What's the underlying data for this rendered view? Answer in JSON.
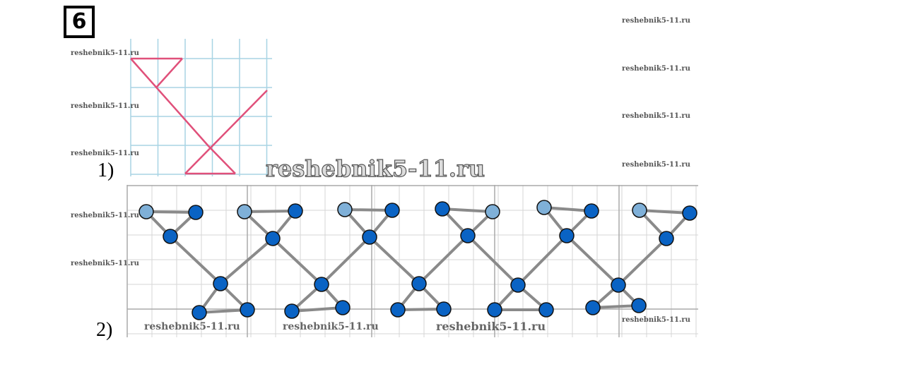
{
  "task_number": "6",
  "part_labels": [
    "1)",
    "2)"
  ],
  "watermark": "reshebnik5-11.ru",
  "watermarks_small": [
    "reshebnik5-11.ru",
    "reshebnik5-11.ru",
    "reshebnik5-11.ru",
    "reshebnik5-11.ru",
    "reshebnik5-11.ru",
    "reshebnik5-11.ru",
    "reshebnik5-11.ru",
    "reshebnik5-11.ru",
    "reshebnik5-11.ru",
    "reshebnik5-11.ru",
    "reshebnik5-11.ru"
  ],
  "watermarks_medium": [
    "reshebnik5-11.ru",
    "reshebnik5-11.ru",
    "reshebnik5-11.ru"
  ],
  "colors": {
    "pattern_line": "#e0507a",
    "grid_blue": "#a8d4e4",
    "node_fill": "#0a63c4",
    "node_faded": "#7fb0d8",
    "link": "#8a8a8a",
    "grid_gray": "#d6d6d6"
  }
}
